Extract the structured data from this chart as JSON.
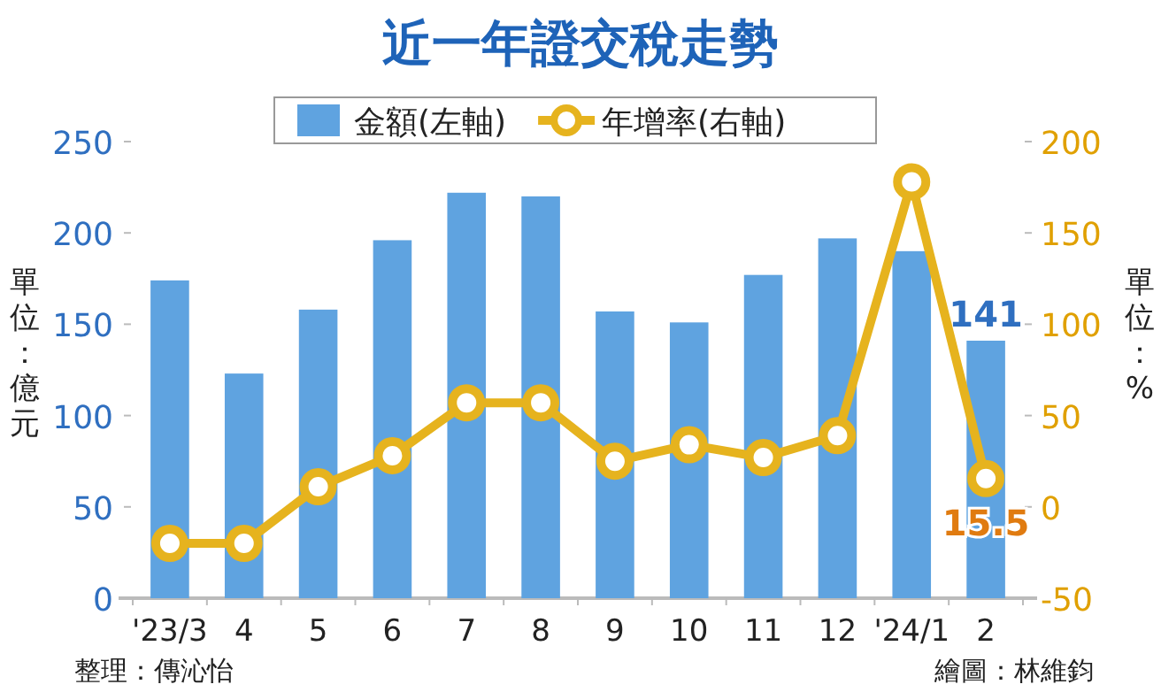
{
  "chart_data": {
    "type": "bar",
    "title": "近一年證交稅走勢",
    "categories": [
      "'23/3",
      "4",
      "5",
      "6",
      "7",
      "8",
      "9",
      "10",
      "11",
      "12",
      "'24/1",
      "2"
    ],
    "series": [
      {
        "name": "金額(左軸)",
        "color": "#5fa3e0",
        "values": [
          174,
          123,
          158,
          196,
          222,
          220,
          157,
          151,
          177,
          197,
          190,
          141
        ],
        "value_labels": [
          null,
          null,
          null,
          null,
          null,
          null,
          null,
          null,
          null,
          null,
          null,
          "141"
        ]
      },
      {
        "name": "年增率(右軸)",
        "type": "line",
        "axis": "y2",
        "color": "#e6b31e",
        "values": [
          -20,
          -20,
          11,
          28,
          57,
          57,
          25,
          34,
          27,
          39,
          178,
          15.5
        ],
        "value_labels": [
          null,
          null,
          null,
          null,
          null,
          null,
          null,
          null,
          null,
          null,
          null,
          "15.5"
        ]
      }
    ],
    "ylabel": "單位：億元",
    "y2label": "單位：%",
    "ylim": [
      0,
      250
    ],
    "yticks": [
      0,
      50,
      100,
      150,
      200,
      250
    ],
    "y2lim": [
      -50,
      200
    ],
    "y2ticks": [
      -50,
      0,
      50,
      100,
      150,
      200
    ],
    "legend": "top",
    "marker": "circle",
    "annotations": [
      "整理：傳沁怡",
      "繪圖：林維鈞"
    ]
  }
}
